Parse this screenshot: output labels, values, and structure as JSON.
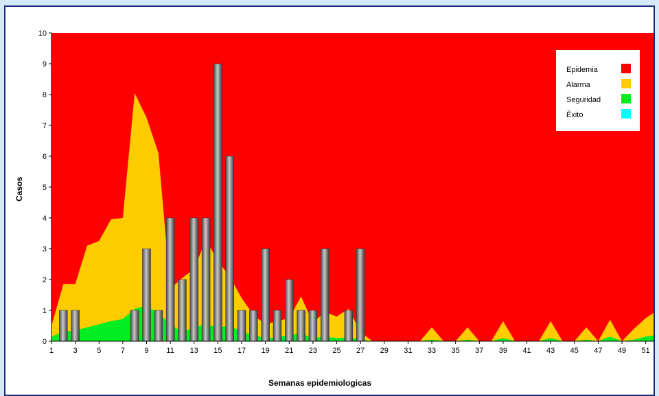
{
  "chart_data": {
    "type": "area",
    "xlabel": "Semanas epidemiologicas",
    "ylabel": "Casos",
    "ylim": [
      0,
      10
    ],
    "xlim": [
      1,
      52
    ],
    "yticks": [
      0,
      1,
      2,
      3,
      4,
      5,
      6,
      7,
      8,
      9,
      10
    ],
    "xticks": [
      1,
      3,
      5,
      7,
      9,
      11,
      13,
      15,
      17,
      19,
      21,
      23,
      25,
      27,
      29,
      31,
      33,
      35,
      37,
      39,
      41,
      43,
      45,
      47,
      49,
      51
    ],
    "grid": false,
    "legend_position": "top-right",
    "legend": [
      {
        "name": "Epidemia",
        "color": "#ff0000"
      },
      {
        "name": "Alarma",
        "color": "#ffcc00"
      },
      {
        "name": "Seguridad",
        "color": "#00ee22"
      },
      {
        "name": "Éxito",
        "color": "#00ffff"
      }
    ],
    "area_series": [
      {
        "name": "Epidemia",
        "fill_to_top": true
      },
      {
        "name": "Alarma",
        "x": [
          1,
          2,
          3,
          4,
          5,
          6,
          7,
          8,
          9,
          10,
          11,
          12,
          13,
          14,
          15,
          16,
          17,
          18,
          19,
          20,
          21,
          22,
          23,
          24,
          25,
          26,
          27,
          28,
          29,
          30,
          31,
          32,
          33,
          34,
          35,
          36,
          37,
          38,
          39,
          40,
          41,
          42,
          43,
          44,
          45,
          46,
          47,
          48,
          49,
          50,
          51,
          52
        ],
        "values": [
          0.5,
          1.85,
          1.85,
          3.1,
          3.25,
          3.95,
          4.0,
          8.05,
          7.25,
          6.1,
          1.7,
          2.05,
          2.35,
          3.3,
          2.6,
          2.1,
          1.4,
          0.85,
          0.55,
          0.65,
          0.75,
          1.45,
          0.6,
          0.95,
          0.8,
          1.05,
          0.3,
          0,
          0,
          0,
          0,
          0,
          0.45,
          0,
          0,
          0.45,
          0,
          0,
          0.65,
          0,
          0,
          0,
          0.65,
          0,
          0,
          0.45,
          0,
          0.7,
          0,
          0.4,
          0.75,
          1.0
        ]
      },
      {
        "name": "Seguridad",
        "x": [
          1,
          2,
          3,
          4,
          5,
          6,
          7,
          8,
          9,
          10,
          11,
          12,
          13,
          14,
          15,
          16,
          17,
          18,
          19,
          20,
          21,
          22,
          23,
          24,
          25,
          26,
          27,
          28,
          29,
          30,
          31,
          32,
          33,
          34,
          35,
          36,
          37,
          38,
          39,
          40,
          41,
          42,
          43,
          44,
          45,
          46,
          47,
          48,
          49,
          50,
          51,
          52
        ],
        "values": [
          0.15,
          0.3,
          0.35,
          0.45,
          0.55,
          0.65,
          0.72,
          1.05,
          1.15,
          0.9,
          0.55,
          0.3,
          0.45,
          0.55,
          0.45,
          0.5,
          0.3,
          0.2,
          0.1,
          0.12,
          0.2,
          0.25,
          0.1,
          0.15,
          0.1,
          0.12,
          0.05,
          0,
          0,
          0,
          0,
          0,
          0.05,
          0,
          0,
          0.05,
          0,
          0,
          0.1,
          0,
          0,
          0,
          0.1,
          0,
          0,
          0.05,
          0,
          0.15,
          0,
          0.05,
          0.15,
          0.2
        ]
      },
      {
        "name": "Éxito",
        "values": []
      }
    ],
    "bars": {
      "x": [
        2,
        3,
        8,
        9,
        10,
        11,
        12,
        13,
        14,
        15,
        16,
        17,
        18,
        19,
        20,
        21,
        22,
        23,
        24,
        26,
        27
      ],
      "values": [
        1,
        1,
        1,
        3,
        1,
        4,
        2,
        4,
        4,
        9,
        6,
        1,
        1,
        3,
        1,
        2,
        1,
        1,
        3,
        1,
        3
      ],
      "color": "#808080"
    }
  }
}
